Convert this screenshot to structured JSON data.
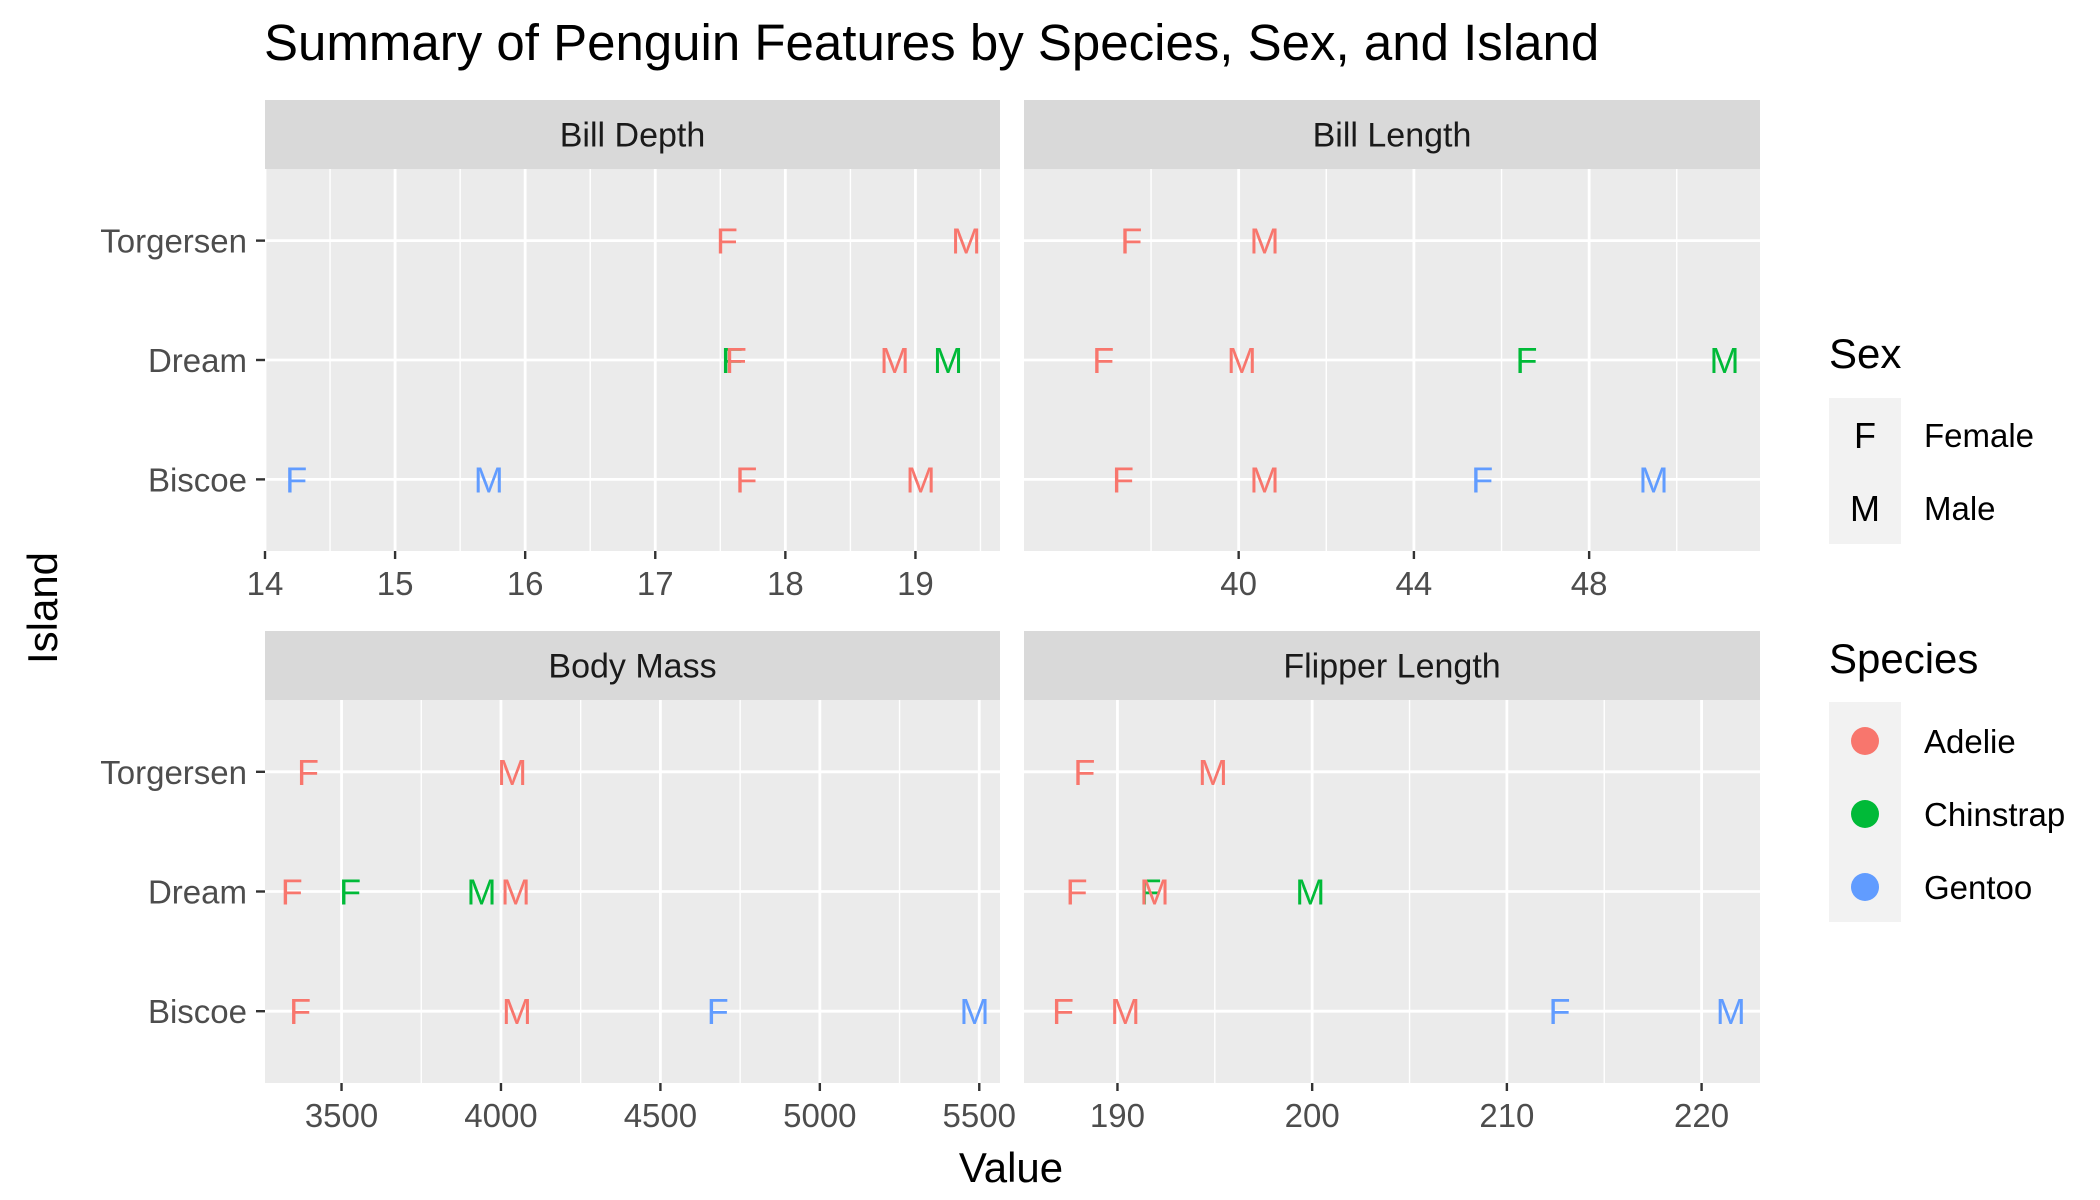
{
  "chart_data": {
    "type": "scatter",
    "title": "Summary of Penguin Features by Species, Sex, and Island",
    "xlabel": "Value",
    "ylabel": "Island",
    "y_categories": [
      "Biscoe",
      "Dream",
      "Torgersen"
    ],
    "facet_layout": "2x2, free x scales",
    "grid": true,
    "panel_background": "#EBEBEB",
    "strip_background": "#D9D9D9",
    "colors": {
      "Adelie": "#F8766D",
      "Chinstrap": "#00BA38",
      "Gentoo": "#619CFF"
    },
    "legends": [
      {
        "title": "Sex",
        "position": "right",
        "items": [
          {
            "glyph": "F",
            "label": "Female"
          },
          {
            "glyph": "M",
            "label": "Male"
          }
        ]
      },
      {
        "title": "Species",
        "position": "right",
        "items": [
          {
            "label": "Adelie"
          },
          {
            "label": "Chinstrap"
          },
          {
            "label": "Gentoo"
          }
        ]
      }
    ],
    "facets": [
      {
        "name": "Bill Depth",
        "xlim": [
          14,
          19.65
        ],
        "major_ticks": [
          14,
          15,
          16,
          17,
          18,
          19
        ],
        "tick_labels": [
          "14",
          "15",
          "16",
          "17",
          "18",
          "19"
        ],
        "points": [
          {
            "island": "Torgersen",
            "species": "Adelie",
            "sex": "F",
            "value": 17.55
          },
          {
            "island": "Torgersen",
            "species": "Adelie",
            "sex": "M",
            "value": 19.39
          },
          {
            "island": "Dream",
            "species": "Chinstrap",
            "sex": "F",
            "value": 17.59
          },
          {
            "island": "Dream",
            "species": "Adelie",
            "sex": "F",
            "value": 17.62
          },
          {
            "island": "Dream",
            "species": "Adelie",
            "sex": "M",
            "value": 18.84
          },
          {
            "island": "Dream",
            "species": "Chinstrap",
            "sex": "M",
            "value": 19.25
          },
          {
            "island": "Biscoe",
            "species": "Gentoo",
            "sex": "F",
            "value": 14.24
          },
          {
            "island": "Biscoe",
            "species": "Gentoo",
            "sex": "M",
            "value": 15.72
          },
          {
            "island": "Biscoe",
            "species": "Adelie",
            "sex": "F",
            "value": 17.7
          },
          {
            "island": "Biscoe",
            "species": "Adelie",
            "sex": "M",
            "value": 19.04
          }
        ]
      },
      {
        "name": "Bill Length",
        "xlim": [
          35.1,
          51.9
        ],
        "major_ticks": [
          40,
          44,
          48
        ],
        "tick_labels": [
          "40",
          "44",
          "48"
        ],
        "points": [
          {
            "island": "Torgersen",
            "species": "Adelie",
            "sex": "F",
            "value": 37.55
          },
          {
            "island": "Torgersen",
            "species": "Adelie",
            "sex": "M",
            "value": 40.59
          },
          {
            "island": "Dream",
            "species": "Adelie",
            "sex": "F",
            "value": 36.91
          },
          {
            "island": "Dream",
            "species": "Adelie",
            "sex": "M",
            "value": 40.07
          },
          {
            "island": "Dream",
            "species": "Chinstrap",
            "sex": "F",
            "value": 46.57
          },
          {
            "island": "Dream",
            "species": "Chinstrap",
            "sex": "M",
            "value": 51.09
          },
          {
            "island": "Biscoe",
            "species": "Adelie",
            "sex": "F",
            "value": 37.36
          },
          {
            "island": "Biscoe",
            "species": "Adelie",
            "sex": "M",
            "value": 40.59
          },
          {
            "island": "Biscoe",
            "species": "Gentoo",
            "sex": "F",
            "value": 45.56
          },
          {
            "island": "Biscoe",
            "species": "Gentoo",
            "sex": "M",
            "value": 49.47
          }
        ]
      },
      {
        "name": "Body Mass",
        "xlim": [
          3260,
          5565
        ],
        "major_ticks": [
          3500,
          4000,
          4500,
          5000,
          5500
        ],
        "tick_labels": [
          "3500",
          "4000",
          "4500",
          "5000",
          "5500"
        ],
        "points": [
          {
            "island": "Torgersen",
            "species": "Adelie",
            "sex": "F",
            "value": 3395
          },
          {
            "island": "Torgersen",
            "species": "Adelie",
            "sex": "M",
            "value": 4035
          },
          {
            "island": "Dream",
            "species": "Adelie",
            "sex": "F",
            "value": 3344
          },
          {
            "island": "Dream",
            "species": "Chinstrap",
            "sex": "F",
            "value": 3527
          },
          {
            "island": "Dream",
            "species": "Chinstrap",
            "sex": "M",
            "value": 3939
          },
          {
            "island": "Dream",
            "species": "Adelie",
            "sex": "M",
            "value": 4046
          },
          {
            "island": "Biscoe",
            "species": "Adelie",
            "sex": "F",
            "value": 3370
          },
          {
            "island": "Biscoe",
            "species": "Adelie",
            "sex": "M",
            "value": 4050
          },
          {
            "island": "Biscoe",
            "species": "Gentoo",
            "sex": "F",
            "value": 4680
          },
          {
            "island": "Biscoe",
            "species": "Gentoo",
            "sex": "M",
            "value": 5485
          }
        ]
      },
      {
        "name": "Flipper Length",
        "xlim": [
          185.2,
          223.0
        ],
        "major_ticks": [
          190,
          200,
          210,
          220
        ],
        "tick_labels": [
          "190",
          "200",
          "210",
          "220"
        ],
        "points": [
          {
            "island": "Torgersen",
            "species": "Adelie",
            "sex": "F",
            "value": 188.3
          },
          {
            "island": "Torgersen",
            "species": "Adelie",
            "sex": "M",
            "value": 194.9
          },
          {
            "island": "Dream",
            "species": "Adelie",
            "sex": "F",
            "value": 187.9
          },
          {
            "island": "Dream",
            "species": "Chinstrap",
            "sex": "F",
            "value": 191.7
          },
          {
            "island": "Dream",
            "species": "Adelie",
            "sex": "M",
            "value": 191.9
          },
          {
            "island": "Dream",
            "species": "Chinstrap",
            "sex": "M",
            "value": 199.9
          },
          {
            "island": "Biscoe",
            "species": "Adelie",
            "sex": "F",
            "value": 187.2
          },
          {
            "island": "Biscoe",
            "species": "Adelie",
            "sex": "M",
            "value": 190.4
          },
          {
            "island": "Biscoe",
            "species": "Gentoo",
            "sex": "F",
            "value": 212.7
          },
          {
            "island": "Biscoe",
            "species": "Gentoo",
            "sex": "M",
            "value": 221.5
          }
        ]
      }
    ]
  }
}
